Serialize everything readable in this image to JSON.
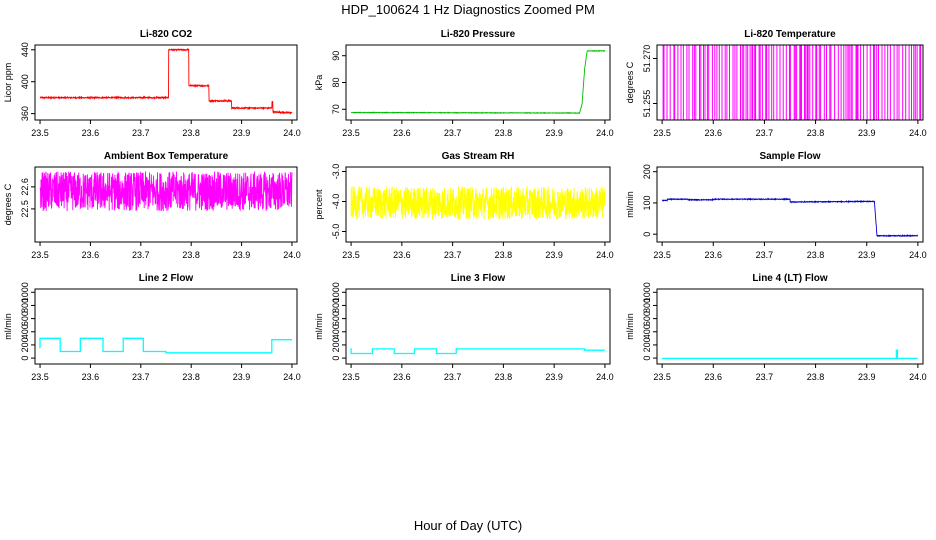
{
  "figure": {
    "title": "HDP_100624  1 Hz Diagnostics Zoomed PM",
    "xlabel": "Hour of Day (UTC)"
  },
  "chart_data": [
    {
      "type": "line",
      "title": "Li-820 CO2",
      "ylabel": "Licor ppm",
      "color": "#ff0000",
      "xlim": [
        23.49,
        24.01
      ],
      "ylim": [
        352,
        446
      ],
      "xticks": [
        "23.5",
        "23.6",
        "23.7",
        "23.8",
        "23.9",
        "24.0"
      ],
      "yticks": [
        "360",
        "400",
        "440"
      ],
      "noise": 0.8,
      "series": [
        {
          "x": [
            23.5,
            23.755,
            23.755,
            23.795,
            23.795,
            23.835,
            23.835,
            23.88,
            23.88,
            23.96,
            23.96,
            23.962,
            23.962,
            24.0
          ],
          "y": [
            380,
            380,
            440,
            440,
            395,
            395,
            376,
            376,
            367,
            367,
            375,
            375,
            362,
            361
          ]
        }
      ]
    },
    {
      "type": "line",
      "title": "Li-820 Pressure",
      "ylabel": "kPa",
      "color": "#00bb00",
      "xlim": [
        23.49,
        24.01
      ],
      "ylim": [
        66,
        94
      ],
      "xticks": [
        "23.5",
        "23.6",
        "23.7",
        "23.8",
        "23.9",
        "24.0"
      ],
      "yticks": [
        "70",
        "80",
        "90"
      ],
      "noise": 0.1,
      "series": [
        {
          "x": [
            23.5,
            23.95,
            23.955,
            23.96,
            23.965,
            24.0
          ],
          "y": [
            68.8,
            68.6,
            72,
            85,
            91.8,
            91.8
          ]
        }
      ]
    },
    {
      "type": "line",
      "title": "Li-820 Temperature",
      "ylabel": "degrees C",
      "color": "#ff00ff",
      "xlim": [
        23.49,
        24.01
      ],
      "ylim": [
        51.2495,
        51.2745
      ],
      "xticks": [
        "23.5",
        "23.6",
        "23.7",
        "23.8",
        "23.9",
        "24.0"
      ],
      "yticks": [
        "51.255",
        "51.270"
      ],
      "mode": "toggle",
      "levels": [
        51.2495,
        51.2745
      ],
      "series": [
        {
          "x": [
            23.5,
            24.0
          ],
          "y": [
            51.2495,
            51.2495
          ]
        }
      ]
    },
    {
      "type": "line",
      "title": "Ambient Box Temperature",
      "ylabel": "degrees C",
      "color": "#ff00ff",
      "xlim": [
        23.49,
        24.01
      ],
      "ylim": [
        22.35,
        22.69
      ],
      "xticks": [
        "23.5",
        "23.6",
        "23.7",
        "23.8",
        "23.9",
        "24.0"
      ],
      "yticks": [
        "22.5",
        "22.6"
      ],
      "noise": 0.09,
      "series": [
        {
          "x": [
            23.5,
            24.0
          ],
          "y": [
            22.58,
            22.58
          ]
        }
      ]
    },
    {
      "type": "line",
      "title": "Gas Stream RH",
      "ylabel": "percent",
      "color": "#ffff00",
      "xlim": [
        23.49,
        24.01
      ],
      "ylim": [
        -5.35,
        -2.85
      ],
      "xticks": [
        "23.5",
        "23.6",
        "23.7",
        "23.8",
        "23.9",
        "24.0"
      ],
      "yticks": [
        "-5.0",
        "-4.0",
        "-3.0"
      ],
      "noise": 0.55,
      "series": [
        {
          "x": [
            23.5,
            24.0
          ],
          "y": [
            -4.05,
            -4.05
          ]
        }
      ]
    },
    {
      "type": "line",
      "title": "Sample Flow",
      "ylabel": "ml/min",
      "color": "#0000cc",
      "xlim": [
        23.49,
        24.01
      ],
      "ylim": [
        -25,
        215
      ],
      "xticks": [
        "23.5",
        "23.6",
        "23.7",
        "23.8",
        "23.9",
        "24.0"
      ],
      "yticks": [
        "0",
        "100",
        "200"
      ],
      "noise": 1.2,
      "series": [
        {
          "x": [
            23.5,
            23.51,
            23.51,
            23.55,
            23.55,
            23.6,
            23.6,
            23.75,
            23.75,
            23.915,
            23.92,
            24.0
          ],
          "y": [
            108,
            108,
            112,
            112,
            110,
            110,
            112,
            112,
            103,
            105,
            -5,
            -5
          ]
        }
      ]
    },
    {
      "type": "line",
      "title": "Line 2 Flow",
      "ylabel": "ml/min",
      "color": "#00ffff",
      "xlim": [
        23.49,
        24.01
      ],
      "ylim": [
        -90,
        1050
      ],
      "xticks": [
        "23.5",
        "23.6",
        "23.7",
        "23.8",
        "23.9",
        "24.0"
      ],
      "yticks": [
        "0",
        "200",
        "400",
        "600",
        "800",
        "1000"
      ],
      "noise": 0,
      "series": [
        {
          "x": [
            23.5,
            23.5,
            23.54,
            23.54,
            23.58,
            23.58,
            23.625,
            23.625,
            23.665,
            23.665,
            23.705,
            23.705,
            23.75,
            23.75,
            23.96,
            23.96,
            24.0
          ],
          "y": [
            150,
            300,
            300,
            100,
            100,
            300,
            300,
            100,
            100,
            300,
            300,
            100,
            100,
            80,
            80,
            280,
            280
          ]
        }
      ]
    },
    {
      "type": "line",
      "title": "Line 3 Flow",
      "ylabel": "ml/min",
      "color": "#00ffff",
      "xlim": [
        23.49,
        24.01
      ],
      "ylim": [
        -90,
        1050
      ],
      "xticks": [
        "23.5",
        "23.6",
        "23.7",
        "23.8",
        "23.9",
        "24.0"
      ],
      "yticks": [
        "0",
        "200",
        "400",
        "600",
        "800",
        "1000"
      ],
      "noise": 0,
      "series": [
        {
          "x": [
            23.5,
            23.5,
            23.542,
            23.542,
            23.585,
            23.585,
            23.625,
            23.625,
            23.668,
            23.668,
            23.707,
            23.707,
            23.96,
            23.96,
            24.0
          ],
          "y": [
            150,
            70,
            70,
            140,
            140,
            70,
            70,
            140,
            140,
            70,
            70,
            140,
            140,
            120,
            120
          ]
        }
      ]
    },
    {
      "type": "line",
      "title": "Line 4 (LT) Flow",
      "ylabel": "ml/min",
      "color": "#00ffff",
      "xlim": [
        23.49,
        24.01
      ],
      "ylim": [
        -90,
        1050
      ],
      "xticks": [
        "23.5",
        "23.6",
        "23.7",
        "23.8",
        "23.9",
        "24.0"
      ],
      "yticks": [
        "0",
        "200",
        "400",
        "600",
        "800",
        "1000"
      ],
      "noise": 0,
      "series": [
        {
          "x": [
            23.5,
            23.958,
            23.958,
            23.96,
            23.96,
            24.0
          ],
          "y": [
            -5,
            -5,
            120,
            120,
            -5,
            -5
          ]
        }
      ]
    }
  ]
}
